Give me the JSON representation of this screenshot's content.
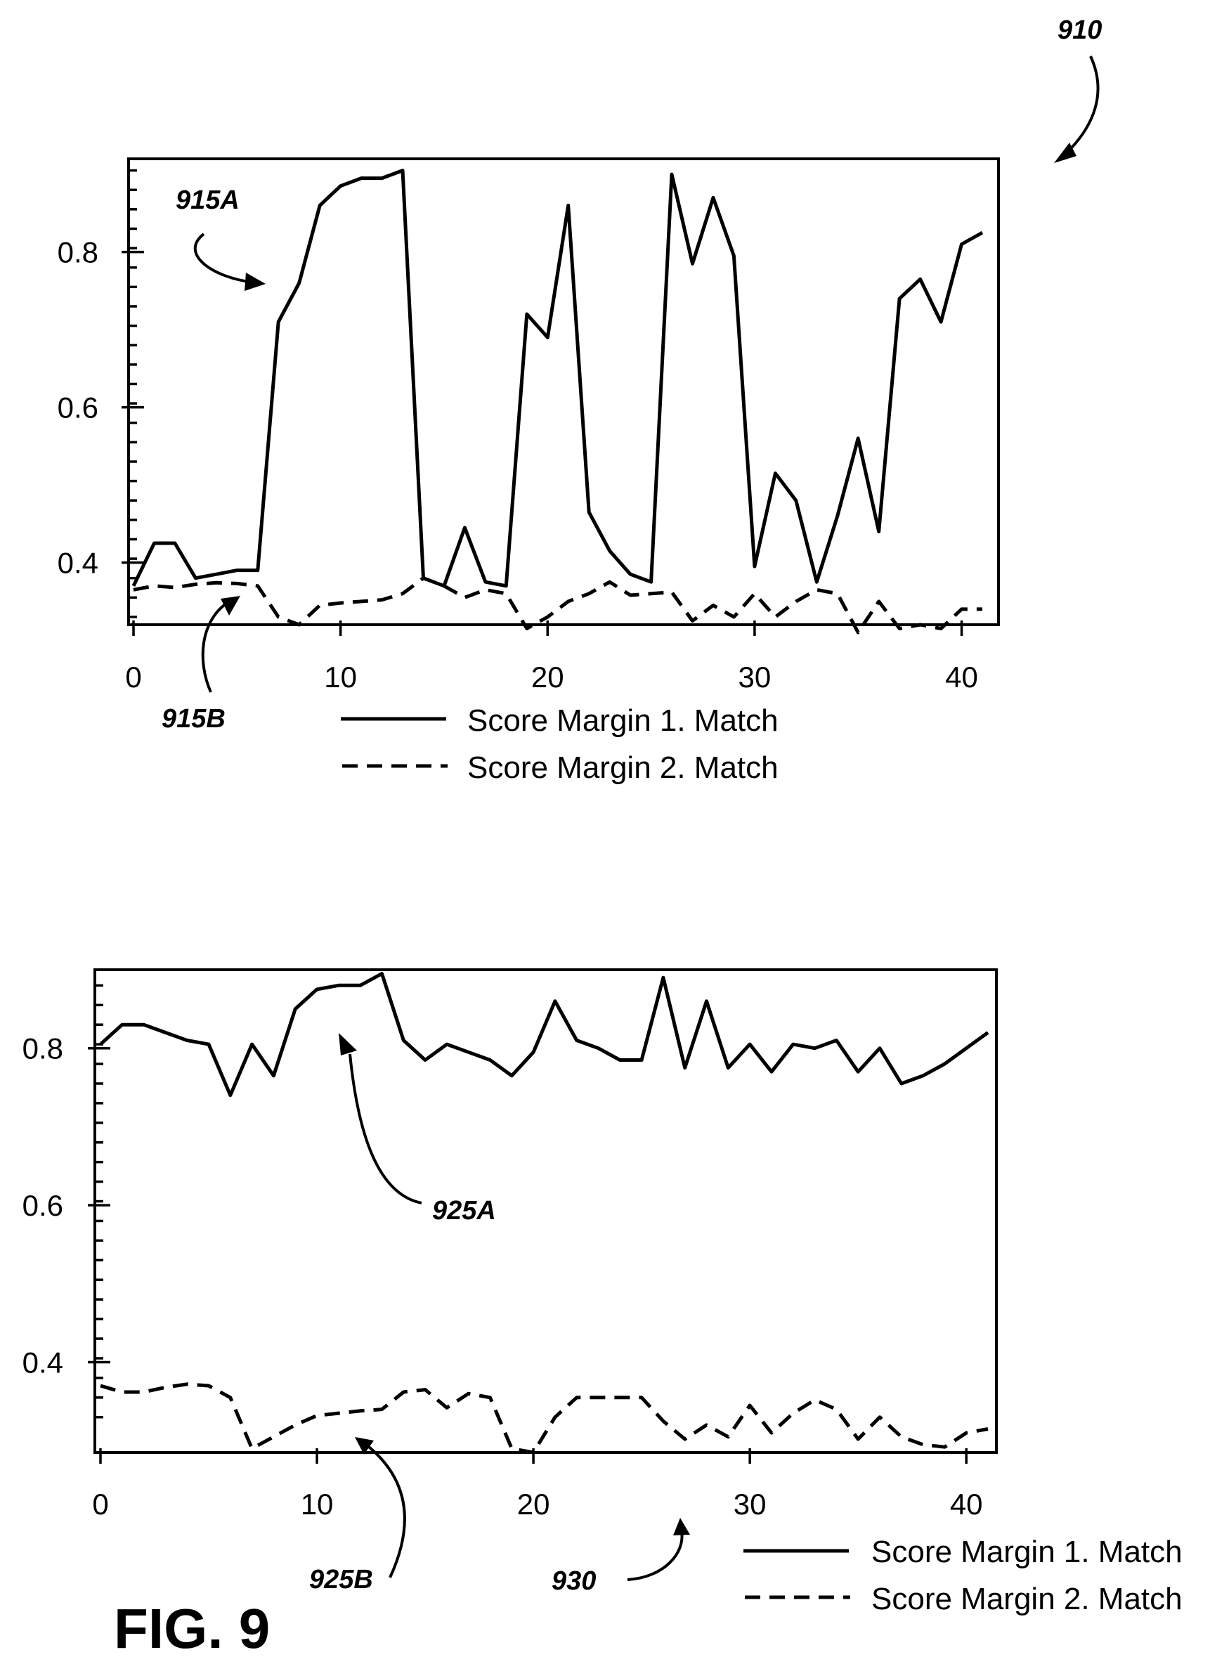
{
  "figure": {
    "label": "FIG. 9",
    "ref_figure": "910",
    "ref_930": "930"
  },
  "chart_data": [
    {
      "type": "line",
      "x": [
        0,
        1,
        2,
        3,
        4,
        5,
        6,
        7,
        8,
        9,
        10,
        11,
        12,
        13,
        14,
        15,
        16,
        17,
        18,
        19,
        20,
        21,
        22,
        23,
        24,
        25,
        26,
        27,
        28,
        29,
        30,
        31,
        32,
        33,
        34,
        35,
        36,
        37,
        38,
        39,
        40,
        41
      ],
      "series": [
        {
          "name": "Score Margin 1. Match",
          "ref": "915A",
          "values": [
            0.37,
            0.425,
            0.425,
            0.38,
            0.385,
            0.39,
            0.39,
            0.71,
            0.76,
            0.86,
            0.885,
            0.895,
            0.895,
            0.905,
            0.38,
            0.37,
            0.445,
            0.375,
            0.37,
            0.72,
            0.69,
            0.86,
            0.465,
            0.415,
            0.385,
            0.375,
            0.9,
            0.785,
            0.87,
            0.795,
            0.395,
            0.515,
            0.48,
            0.375,
            0.46,
            0.56,
            0.44,
            0.74,
            0.765,
            0.71,
            0.81,
            0.825
          ]
        },
        {
          "name": "Score Margin 2. Match",
          "ref": "915B",
          "values": [
            0.365,
            0.37,
            0.368,
            0.372,
            0.374,
            0.373,
            0.37,
            0.33,
            0.32,
            0.345,
            0.348,
            0.35,
            0.352,
            0.36,
            0.38,
            0.37,
            0.355,
            0.365,
            0.36,
            0.315,
            0.33,
            0.35,
            0.36,
            0.375,
            0.358,
            0.36,
            0.362,
            0.325,
            0.345,
            0.33,
            0.36,
            0.33,
            0.35,
            0.365,
            0.36,
            0.31,
            0.35,
            0.315,
            0.32,
            0.315,
            0.34,
            0.34
          ]
        }
      ],
      "xlim": [
        0,
        41
      ],
      "ylim": [
        0.32,
        0.92
      ],
      "x_ticks": [
        0,
        10,
        20,
        30,
        40
      ],
      "y_ticks": [
        0.4,
        0.6,
        0.8
      ],
      "x_tick_labels": [
        "0",
        "10",
        "20",
        "30",
        "40"
      ],
      "y_tick_labels": [
        "0.4",
        "0.6",
        "0.8"
      ],
      "legend": [
        "Score Margin 1. Match",
        "Score Margin 2. Match"
      ],
      "legend_position": "bottom"
    },
    {
      "type": "line",
      "x": [
        0,
        1,
        2,
        3,
        4,
        5,
        6,
        7,
        8,
        9,
        10,
        11,
        12,
        13,
        14,
        15,
        16,
        17,
        18,
        19,
        20,
        21,
        22,
        23,
        24,
        25,
        26,
        27,
        28,
        29,
        30,
        31,
        32,
        33,
        34,
        35,
        36,
        37,
        38,
        39,
        40,
        41
      ],
      "series": [
        {
          "name": "Score Margin 1. Match",
          "ref": "925A",
          "values": [
            0.805,
            0.83,
            0.83,
            0.82,
            0.81,
            0.805,
            0.74,
            0.805,
            0.765,
            0.85,
            0.875,
            0.88,
            0.88,
            0.895,
            0.81,
            0.785,
            0.805,
            0.795,
            0.785,
            0.765,
            0.795,
            0.86,
            0.81,
            0.8,
            0.785,
            0.785,
            0.89,
            0.775,
            0.86,
            0.775,
            0.805,
            0.77,
            0.805,
            0.8,
            0.81,
            0.77,
            0.8,
            0.755,
            0.765,
            0.78,
            0.8,
            0.82
          ]
        },
        {
          "name": "Score Margin 2. Match",
          "ref": "925B",
          "values": [
            0.37,
            0.362,
            0.362,
            0.368,
            0.372,
            0.37,
            0.355,
            0.29,
            0.305,
            0.32,
            0.332,
            0.335,
            0.338,
            0.34,
            0.362,
            0.365,
            0.342,
            0.36,
            0.355,
            0.29,
            0.285,
            0.33,
            0.355,
            0.355,
            0.355,
            0.355,
            0.325,
            0.302,
            0.32,
            0.305,
            0.345,
            0.31,
            0.335,
            0.352,
            0.34,
            0.302,
            0.33,
            0.305,
            0.295,
            0.292,
            0.31,
            0.315
          ]
        }
      ],
      "xlim": [
        0,
        41
      ],
      "ylim": [
        0.285,
        0.9
      ],
      "x_ticks": [
        0,
        10,
        20,
        30,
        40
      ],
      "y_ticks": [
        0.4,
        0.6,
        0.8
      ],
      "x_tick_labels": [
        "0",
        "10",
        "20",
        "30",
        "40"
      ],
      "y_tick_labels": [
        "0.4",
        "0.6",
        "0.8"
      ],
      "legend": [
        "Score Margin 1. Match",
        "Score Margin 2. Match"
      ],
      "legend_position": "bottom-right"
    }
  ]
}
